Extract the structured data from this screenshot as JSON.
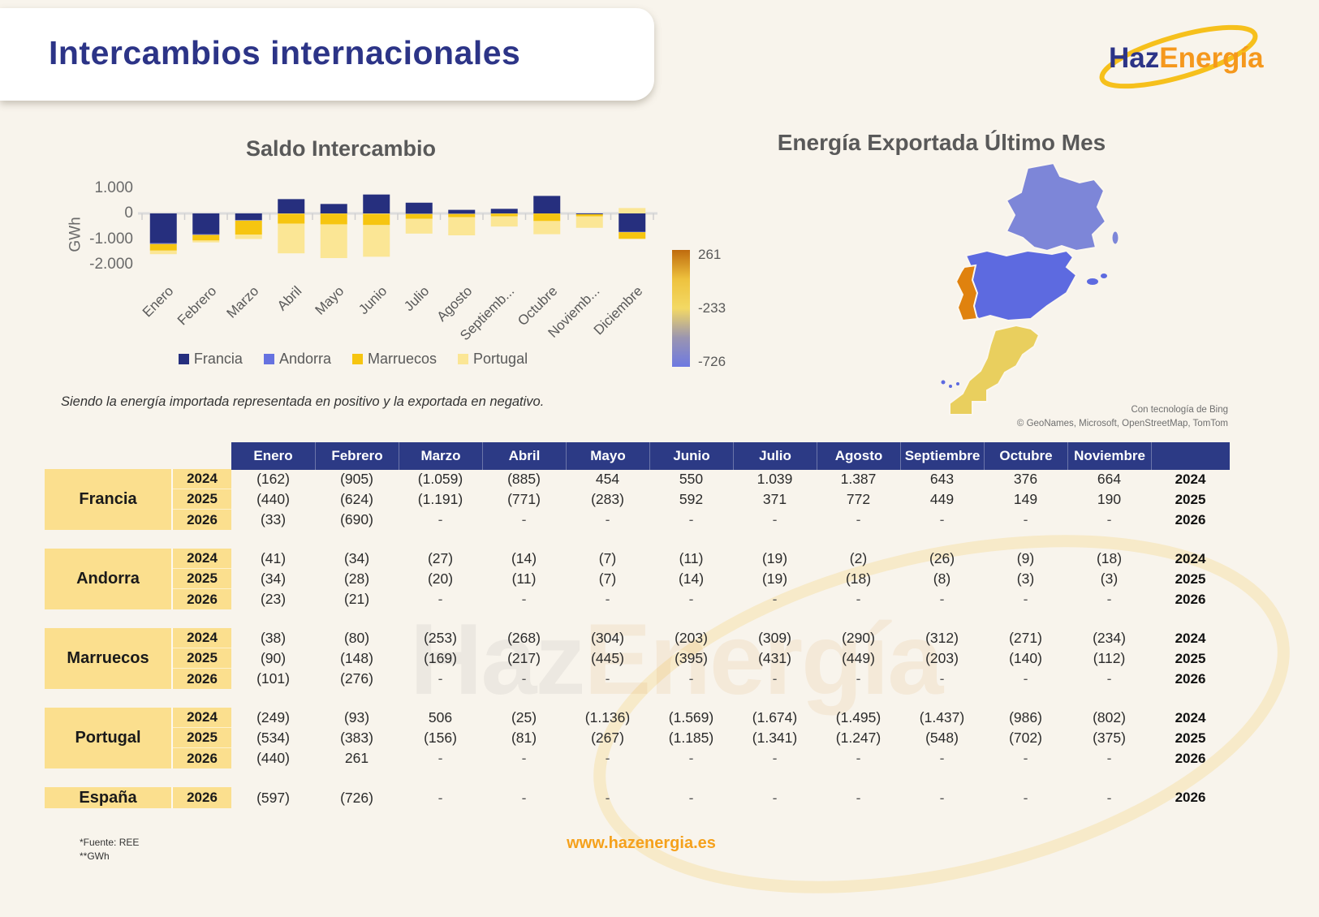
{
  "page": {
    "title": "Intercambios internacionales",
    "note": "Siendo la energía importada representada en positivo y la exportada en negativo.",
    "watermark_part1": "Haz",
    "watermark_part2": "Energía",
    "footer": {
      "source_line1": "*Fuente: REE",
      "source_line2": "**GWh",
      "website": "www.hazenergia.es"
    }
  },
  "logo": {
    "part1": "Haz",
    "part2": "Energía"
  },
  "colors": {
    "background": "#f8f4ec",
    "navy_title": "#2c3487",
    "header_navy": "#2c3a85",
    "cell_yellow": "#fbdf8e",
    "orange": "#f5a11c",
    "gray_text": "#595959",
    "axis_gray": "#dcdcdc"
  },
  "chart_data": [
    {
      "type": "bar",
      "subtype": "stacked",
      "title": "Saldo Intercambio",
      "xlabel": "",
      "ylabel": "GWh",
      "ylim": [
        -2000,
        1000
      ],
      "ytick_labels": [
        "1.000",
        "0",
        "-1.000",
        "-2.000"
      ],
      "ytick_values": [
        1000,
        0,
        -1000,
        -2000
      ],
      "grid": false,
      "legend_position": "bottom",
      "categories": [
        "Enero",
        "Febrero",
        "Marzo",
        "Abril",
        "Mayo",
        "Junio",
        "Julio",
        "Agosto",
        "Septiemb...",
        "Octubre",
        "Noviemb...",
        "Diciembre"
      ],
      "series": [
        {
          "name": "Francia",
          "color": "#262f7e",
          "values": [
            -1160,
            -810,
            -260,
            560,
            370,
            740,
            420,
            140,
            180,
            685,
            -30,
            -715
          ]
        },
        {
          "name": "Andorra",
          "color": "#6672e0",
          "values": [
            -34,
            -28,
            -20,
            -11,
            -7,
            -14,
            -19,
            -18,
            -8,
            -3,
            -3,
            -20
          ]
        },
        {
          "name": "Marruecos",
          "color": "#f6c510",
          "values": [
            -260,
            -220,
            -550,
            -390,
            -420,
            -440,
            -190,
            -125,
            -105,
            -295,
            -80,
            -260
          ]
        },
        {
          "name": "Portugal",
          "color": "#fbe695",
          "values": [
            -140,
            -75,
            -170,
            -1160,
            -1320,
            -1240,
            -580,
            -715,
            -400,
            -515,
            -450,
            210
          ]
        }
      ]
    },
    {
      "type": "heatmap",
      "subtype": "choropleth-map",
      "title": "Energía Exportada Último Mes",
      "unit": "GWh",
      "scale_min": -726,
      "scale_mid": -233,
      "scale_max": 261,
      "regions": [
        {
          "name": "Francia",
          "value": -690,
          "color": "#7d86d8"
        },
        {
          "name": "España",
          "value": -726,
          "color": "#5d6ae0"
        },
        {
          "name": "Portugal",
          "value": 261,
          "color": "#e0820e"
        },
        {
          "name": "Marruecos",
          "value": -276,
          "color": "#e9cf5e"
        }
      ]
    }
  ],
  "map": {
    "title": "Energía Exportada Último Mes",
    "scale": {
      "max_label": "261",
      "mid_label": "-233",
      "min_label": "-726",
      "colors": [
        "#bf6b0e",
        "#eec23e",
        "#f3d964",
        "#9b95b0",
        "#6d79e2"
      ]
    },
    "attribution1": "Con tecnología de Bing",
    "attribution2": "© GeoNames, Microsoft, OpenStreetMap, TomTom"
  },
  "table": {
    "month_headers": [
      "Enero",
      "Febrero",
      "Marzo",
      "Abril",
      "Mayo",
      "Junio",
      "Julio",
      "Agosto",
      "Septiembre",
      "Octubre",
      "Noviembre"
    ],
    "blocks": [
      {
        "country": "Francia",
        "years": [
          {
            "year": "2024",
            "values": [
              "(162)",
              "(905)",
              "(1.059)",
              "(885)",
              "454",
              "550",
              "1.039",
              "1.387",
              "643",
              "376",
              "664"
            ]
          },
          {
            "year": "2025",
            "values": [
              "(440)",
              "(624)",
              "(1.191)",
              "(771)",
              "(283)",
              "592",
              "371",
              "772",
              "449",
              "149",
              "190"
            ]
          },
          {
            "year": "2026",
            "values": [
              "(33)",
              "(690)",
              "-",
              "-",
              "-",
              "-",
              "-",
              "-",
              "-",
              "-",
              "-"
            ]
          }
        ]
      },
      {
        "country": "Andorra",
        "years": [
          {
            "year": "2024",
            "values": [
              "(41)",
              "(34)",
              "(27)",
              "(14)",
              "(7)",
              "(11)",
              "(19)",
              "(2)",
              "(26)",
              "(9)",
              "(18)"
            ]
          },
          {
            "year": "2025",
            "values": [
              "(34)",
              "(28)",
              "(20)",
              "(11)",
              "(7)",
              "(14)",
              "(19)",
              "(18)",
              "(8)",
              "(3)",
              "(3)"
            ]
          },
          {
            "year": "2026",
            "values": [
              "(23)",
              "(21)",
              "-",
              "-",
              "-",
              "-",
              "-",
              "-",
              "-",
              "-",
              "-"
            ]
          }
        ]
      },
      {
        "country": "Marruecos",
        "years": [
          {
            "year": "2024",
            "values": [
              "(38)",
              "(80)",
              "(253)",
              "(268)",
              "(304)",
              "(203)",
              "(309)",
              "(290)",
              "(312)",
              "(271)",
              "(234)"
            ]
          },
          {
            "year": "2025",
            "values": [
              "(90)",
              "(148)",
              "(169)",
              "(217)",
              "(445)",
              "(395)",
              "(431)",
              "(449)",
              "(203)",
              "(140)",
              "(112)"
            ]
          },
          {
            "year": "2026",
            "values": [
              "(101)",
              "(276)",
              "-",
              "-",
              "-",
              "-",
              "-",
              "-",
              "-",
              "-",
              "-"
            ]
          }
        ]
      },
      {
        "country": "Portugal",
        "years": [
          {
            "year": "2024",
            "values": [
              "(249)",
              "(93)",
              "506",
              "(25)",
              "(1.136)",
              "(1.569)",
              "(1.674)",
              "(1.495)",
              "(1.437)",
              "(986)",
              "(802)"
            ]
          },
          {
            "year": "2025",
            "values": [
              "(534)",
              "(383)",
              "(156)",
              "(81)",
              "(267)",
              "(1.185)",
              "(1.341)",
              "(1.247)",
              "(548)",
              "(702)",
              "(375)"
            ]
          },
          {
            "year": "2026",
            "values": [
              "(440)",
              "261",
              "-",
              "-",
              "-",
              "-",
              "-",
              "-",
              "-",
              "-",
              "-"
            ]
          }
        ]
      },
      {
        "country": "España",
        "years": [
          {
            "year": "2026",
            "values": [
              "(597)",
              "(726)",
              "-",
              "-",
              "-",
              "-",
              "-",
              "-",
              "-",
              "-",
              "-"
            ]
          }
        ]
      }
    ]
  }
}
